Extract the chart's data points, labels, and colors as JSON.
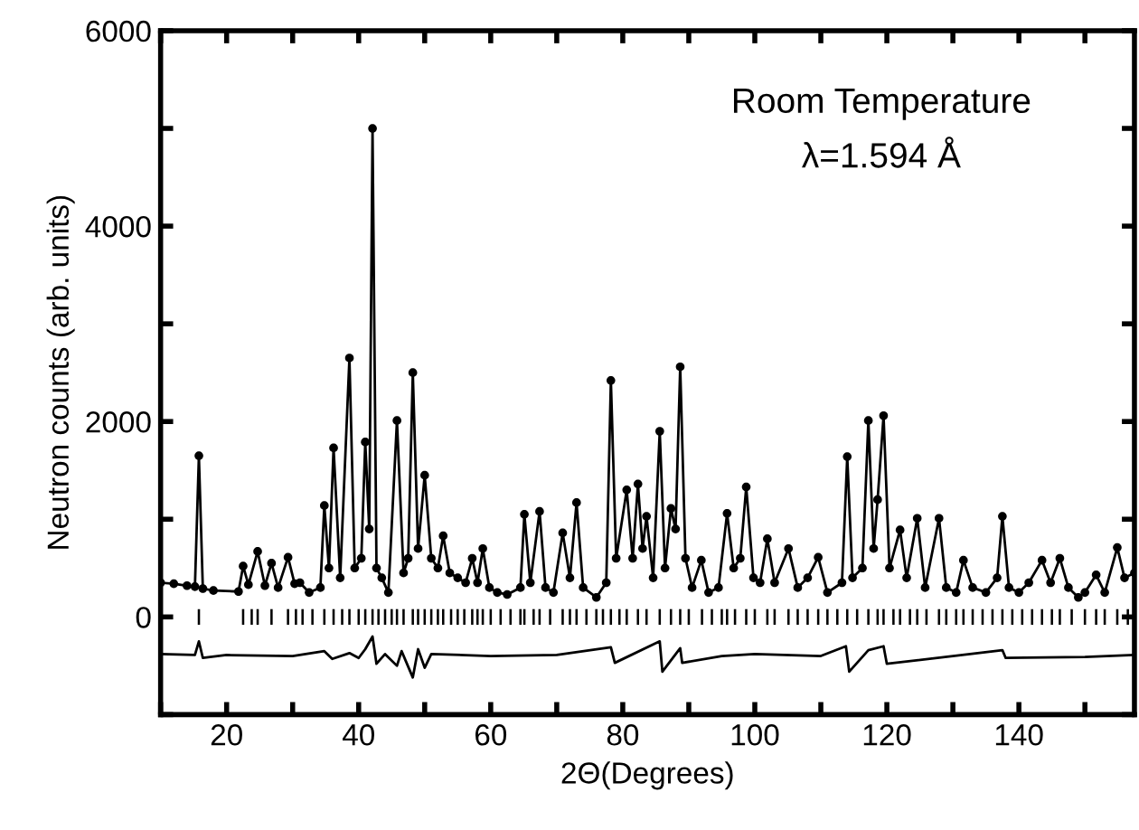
{
  "chart_data": {
    "type": "scatter",
    "xlabel": "2Θ(Degrees)",
    "ylabel": "Neutron counts (arb. units)",
    "annotations": [
      "Room Temperature",
      "λ=1.594 Å"
    ],
    "xlim": [
      10,
      157.5
    ],
    "ylim": [
      -1000,
      6000
    ],
    "xticks": [
      {
        "value": 10,
        "label": null
      },
      20,
      {
        "value": 30,
        "label": null
      },
      40,
      {
        "value": 50,
        "label": null
      },
      60,
      {
        "value": 70,
        "label": null
      },
      80,
      {
        "value": 90,
        "label": null
      },
      100,
      {
        "value": 110,
        "label": null
      },
      120,
      {
        "value": 130,
        "label": null
      },
      140,
      {
        "value": 150,
        "label": null
      }
    ],
    "yticks": [
      {
        "value": -1000,
        "label": null
      },
      0,
      {
        "value": 1000,
        "label": null
      },
      2000,
      {
        "value": 3000,
        "label": null
      },
      4000,
      {
        "value": 5000,
        "label": null
      },
      6000
    ],
    "grid": false,
    "legend": false,
    "series": [
      {
        "marker": "circle",
        "color": "#000000",
        "x": [
          10,
          12,
          14,
          15.2,
          15.8,
          16.4,
          18,
          21.8,
          22.5,
          23.3,
          24.7,
          25.8,
          26.8,
          27.8,
          29.3,
          30.3,
          31.1,
          32.5,
          34.2,
          34.8,
          35.5,
          36.2,
          37.2,
          38.6,
          39.4,
          40.4,
          41.0,
          41.6,
          42.1,
          42.7,
          43.5,
          44.5,
          45.8,
          46.8,
          47.5,
          48.2,
          49.0,
          50.0,
          51.0,
          52.0,
          52.8,
          53.8,
          55,
          56.2,
          57.2,
          58,
          58.8,
          59.8,
          61,
          62.5,
          64.5,
          65.1,
          66,
          67.4,
          68.3,
          69.5,
          70.9,
          72,
          73.0,
          74,
          76,
          77.5,
          78.2,
          79,
          80.6,
          81.5,
          82.3,
          83.0,
          83.6,
          84.6,
          85.6,
          86.4,
          87.3,
          88.0,
          88.7,
          89.5,
          90.5,
          91.9,
          93,
          94.5,
          95.8,
          96.8,
          97.8,
          98.7,
          99.8,
          100.8,
          101.9,
          103,
          105.1,
          106.5,
          108,
          109.6,
          111,
          113.2,
          114.0,
          114.8,
          116.3,
          117.2,
          118.0,
          118.6,
          119.5,
          120.4,
          122.0,
          123,
          124.6,
          125.8,
          127.9,
          129,
          130.5,
          131.6,
          133,
          135,
          136.7,
          137.5,
          138.5,
          140,
          141.5,
          143.5,
          144.8,
          146.2,
          147.5,
          149,
          150,
          151.7,
          153,
          154.9,
          156,
          157.5
        ],
        "values": [
          350,
          340,
          320,
          310,
          1650,
          290,
          270,
          260,
          520,
          330,
          670,
          320,
          550,
          300,
          610,
          340,
          350,
          250,
          300,
          1140,
          500,
          1730,
          400,
          2650,
          500,
          600,
          1790,
          900,
          5000,
          500,
          400,
          250,
          2010,
          450,
          600,
          2500,
          700,
          1450,
          600,
          500,
          830,
          450,
          400,
          350,
          600,
          350,
          700,
          300,
          250,
          230,
          300,
          1050,
          350,
          1080,
          300,
          250,
          860,
          400,
          1170,
          300,
          200,
          350,
          2420,
          600,
          1300,
          600,
          1360,
          700,
          1030,
          400,
          1900,
          500,
          1110,
          900,
          2560,
          600,
          300,
          580,
          250,
          300,
          1060,
          500,
          600,
          1330,
          400,
          350,
          800,
          350,
          700,
          300,
          400,
          610,
          250,
          350,
          1640,
          400,
          500,
          2010,
          700,
          1200,
          2060,
          500,
          890,
          400,
          1010,
          300,
          1010,
          300,
          250,
          580,
          300,
          250,
          400,
          1030,
          300,
          250,
          350,
          580,
          350,
          600,
          300,
          200,
          250,
          430,
          250,
          710,
          400,
          450
        ]
      },
      {
        "type": "line",
        "marker": "none",
        "line_style": "solid",
        "color": "#000000",
        "x": [
          10,
          12,
          14,
          15.2,
          15.8,
          16.4,
          18,
          21.8,
          22.5,
          23.3,
          24.7,
          25.8,
          26.8,
          27.8,
          29.3,
          30.3,
          31.1,
          32.5,
          34.2,
          34.8,
          35.5,
          36.2,
          37.2,
          38.6,
          39.4,
          40.4,
          41.0,
          41.6,
          42.1,
          42.7,
          43.5,
          44.5,
          45.8,
          46.8,
          47.5,
          48.2,
          49.0,
          50.0,
          51.0,
          52.0,
          52.8,
          53.8,
          55,
          56.2,
          57.2,
          58,
          58.8,
          59.8,
          61,
          62.5,
          64.5,
          65.1,
          66,
          67.4,
          68.3,
          69.5,
          70.9,
          72,
          73.0,
          74,
          76,
          77.5,
          78.2,
          79,
          80.6,
          81.5,
          82.3,
          83.0,
          83.6,
          84.6,
          85.6,
          86.4,
          87.3,
          88.0,
          88.7,
          89.5,
          90.5,
          91.9,
          93,
          94.5,
          95.8,
          96.8,
          97.8,
          98.7,
          99.8,
          100.8,
          101.9,
          103,
          105.1,
          106.5,
          108,
          109.6,
          111,
          113.2,
          114.0,
          114.8,
          116.3,
          117.2,
          118.0,
          118.6,
          119.5,
          120.4,
          122.0,
          123,
          124.6,
          125.8,
          127.9,
          129,
          130.5,
          131.6,
          133,
          135,
          136.7,
          137.5,
          138.5,
          140,
          141.5,
          143.5,
          144.8,
          146.2,
          147.5,
          149,
          150,
          151.7,
          153,
          154.9,
          156,
          157.5
        ],
        "values": [
          350,
          340,
          320,
          310,
          1650,
          290,
          270,
          260,
          520,
          330,
          670,
          320,
          550,
          300,
          610,
          340,
          350,
          250,
          300,
          1140,
          500,
          1730,
          400,
          2650,
          500,
          600,
          1790,
          900,
          5000,
          500,
          400,
          250,
          2010,
          450,
          600,
          2500,
          700,
          1450,
          600,
          500,
          830,
          450,
          400,
          350,
          600,
          350,
          700,
          300,
          250,
          230,
          300,
          1050,
          350,
          1080,
          300,
          250,
          860,
          400,
          1170,
          300,
          200,
          350,
          2420,
          600,
          1300,
          600,
          1360,
          700,
          1030,
          400,
          1900,
          500,
          1110,
          900,
          2560,
          600,
          300,
          580,
          250,
          300,
          1060,
          500,
          600,
          1330,
          400,
          350,
          800,
          350,
          700,
          300,
          400,
          610,
          250,
          350,
          1640,
          400,
          500,
          2010,
          700,
          1200,
          2060,
          500,
          890,
          400,
          1010,
          300,
          1010,
          300,
          250,
          580,
          300,
          250,
          400,
          1030,
          300,
          250,
          350,
          580,
          350,
          600,
          300,
          200,
          250,
          430,
          250,
          710,
          400,
          450
        ]
      },
      {
        "type": "bar",
        "color": "#000000",
        "x": [
          15.8,
          22.5,
          23.8,
          24.7,
          26.8,
          29.3,
          30.5,
          31.5,
          33,
          34.8,
          36.2,
          37.5,
          38.6,
          40,
          41,
          42.1,
          43,
          44,
          45,
          45.8,
          46.8,
          48.2,
          49,
          50,
          51,
          52,
          52.8,
          54,
          55,
          56,
          57.2,
          58,
          58.8,
          60,
          61.5,
          63,
          64.5,
          65.1,
          66.5,
          67.4,
          69,
          70.9,
          72,
          73,
          74.5,
          76,
          77,
          78.2,
          79.5,
          80.6,
          82.3,
          83.6,
          85.6,
          87.3,
          88.7,
          90,
          92,
          93.5,
          95,
          95.8,
          97,
          98.7,
          100,
          101.9,
          103,
          105.1,
          106.5,
          108,
          109.6,
          111,
          112.5,
          114,
          115.5,
          117.2,
          118.6,
          119.5,
          121,
          122,
          123.5,
          124.6,
          126,
          127.9,
          129,
          130.5,
          131.6,
          133,
          134.5,
          136,
          137.5,
          139,
          140.5,
          142,
          143.5,
          145,
          146.2,
          148,
          150,
          151.7,
          153,
          154.9,
          156.5
        ],
        "base": [
          -80,
          -80,
          -80,
          -80,
          -80,
          -80,
          -80,
          -80,
          -80,
          -80,
          -80,
          -80,
          -80,
          -80,
          -80,
          -80,
          -80,
          -80,
          -80,
          -80,
          -80,
          -80,
          -80,
          -80,
          -80,
          -80,
          -80,
          -80,
          -80,
          -80,
          -80,
          -80,
          -80,
          -80,
          -80,
          -80,
          -80,
          -80,
          -80,
          -80,
          -80,
          -80,
          -80,
          -80,
          -80,
          -80,
          -80,
          -80,
          -80,
          -80,
          -80,
          -80,
          -80,
          -80,
          -80,
          -80,
          -80,
          -80,
          -80,
          -80,
          -80,
          -80,
          -80,
          -80,
          -80,
          -80,
          -80,
          -80,
          -80,
          -80,
          -80,
          -80,
          -80,
          -80,
          -80,
          -80,
          -80,
          -80,
          -80,
          -80,
          -80,
          -80,
          -80,
          -80,
          -80,
          -80,
          -80,
          -80,
          -80,
          -80,
          -80,
          -80,
          -80,
          -80,
          -80,
          -80,
          -80,
          -80,
          -80,
          -80,
          -80
        ],
        "values": [
          160,
          160,
          160,
          160,
          160,
          160,
          160,
          160,
          160,
          160,
          160,
          160,
          160,
          160,
          160,
          160,
          160,
          160,
          160,
          160,
          160,
          160,
          160,
          160,
          160,
          160,
          160,
          160,
          160,
          160,
          160,
          160,
          160,
          160,
          160,
          160,
          160,
          160,
          160,
          160,
          160,
          160,
          160,
          160,
          160,
          160,
          160,
          160,
          160,
          160,
          160,
          160,
          160,
          160,
          160,
          160,
          160,
          160,
          160,
          160,
          160,
          160,
          160,
          160,
          160,
          160,
          160,
          160,
          160,
          160,
          160,
          160,
          160,
          160,
          160,
          160,
          160,
          160,
          160,
          160,
          160,
          160,
          160,
          160,
          160,
          160,
          160,
          160,
          160,
          160,
          160,
          160,
          160,
          160,
          160,
          160,
          160,
          160,
          160,
          160,
          160
        ]
      },
      {
        "type": "line",
        "marker": "none",
        "line_style": "solid",
        "color": "#000000",
        "x": [
          10,
          15.2,
          15.8,
          16.4,
          20,
          30,
          34.8,
          36,
          38.6,
          40,
          41,
          42.1,
          42.7,
          44,
          45.8,
          46.5,
          48.2,
          49,
          50,
          51,
          60,
          70,
          78.2,
          78.8,
          85.6,
          86,
          88.7,
          89,
          95,
          100,
          110,
          113.8,
          114.3,
          117.2,
          119.5,
          120,
          130,
          137.5,
          138,
          150,
          157.5
        ],
        "values": [
          -380,
          -390,
          -250,
          -420,
          -390,
          -400,
          -350,
          -430,
          -370,
          -420,
          -330,
          -200,
          -480,
          -380,
          -500,
          -350,
          -620,
          -330,
          -520,
          -380,
          -400,
          -390,
          -310,
          -470,
          -250,
          -560,
          -320,
          -470,
          -400,
          -380,
          -400,
          -300,
          -560,
          -340,
          -300,
          -480,
          -400,
          -340,
          -420,
          -410,
          -390
        ]
      }
    ]
  }
}
